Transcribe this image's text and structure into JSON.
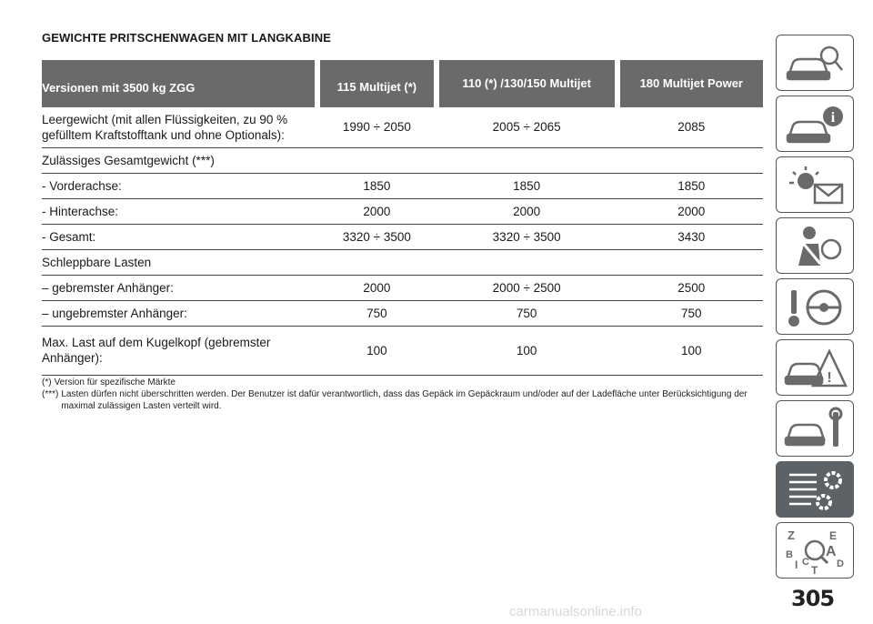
{
  "title": "GEWICHTE PRITSCHENWAGEN MIT LANGKABINE",
  "table": {
    "headers": [
      "Versionen mit 3500 kg ZGG",
      "115 Multijet (*)",
      "110 (*) /130/150 Multijet",
      "180 Multijet Power"
    ],
    "rows": [
      {
        "label": "Leergewicht (mit allen Flüssigkeiten, zu 90 % gefülltem Kraftstofftank und ohne Optionals):",
        "values": [
          "1990 ÷ 2050",
          "2005 ÷ 2065",
          "2085"
        ]
      },
      {
        "label": "Zulässiges Gesamtgewicht (***)",
        "values": [
          "",
          "",
          ""
        ]
      },
      {
        "label": "- Vorderachse:",
        "values": [
          "1850",
          "1850",
          "1850"
        ]
      },
      {
        "label": "- Hinterachse:",
        "values": [
          "2000",
          "2000",
          "2000"
        ]
      },
      {
        "label": "- Gesamt:",
        "values": [
          "3320 ÷ 3500",
          "3320 ÷ 3500",
          "3430"
        ]
      },
      {
        "label": "Schleppbare Lasten",
        "values": [
          "",
          "",
          ""
        ]
      },
      {
        "label": "– gebremster Anhänger:",
        "values": [
          "2000",
          "2000 ÷ 2500",
          "2500"
        ]
      },
      {
        "label": "– ungebremster Anhänger:",
        "values": [
          "750",
          "750",
          "750"
        ]
      },
      {
        "label": "Max. Last auf dem Kugelkopf (gebremster Anhänger):",
        "values": [
          "100",
          "100",
          "100"
        ]
      }
    ]
  },
  "notes": [
    {
      "mark": "(*)",
      "text": "Version für spezifische Märkte"
    },
    {
      "mark": "(***)",
      "text": "Lasten dürfen nicht überschritten werden. Der Benutzer ist dafür verantwortlich, dass das Gepäck im Gepäckraum und/oder auf der Ladefläche unter Berücksichtigung der maximal zulässigen Lasten verteilt wird."
    }
  ],
  "sidebar": {
    "tabs": [
      {
        "icon": "car-search-icon"
      },
      {
        "icon": "car-info-icon"
      },
      {
        "icon": "warning-light-message-icon"
      },
      {
        "icon": "seatbelt-airbag-icon"
      },
      {
        "icon": "key-steering-wheel-icon"
      },
      {
        "icon": "car-warning-triangle-icon"
      },
      {
        "icon": "car-wrench-icon"
      },
      {
        "icon": "specifications-gears-icon",
        "active": true
      },
      {
        "icon": "alphabetical-index-icon"
      }
    ],
    "index_letters": [
      "Z",
      "E",
      "B",
      "A",
      "C",
      "D",
      "T",
      "I"
    ]
  },
  "page_number": "305",
  "watermark": "carmanualsonline.info"
}
